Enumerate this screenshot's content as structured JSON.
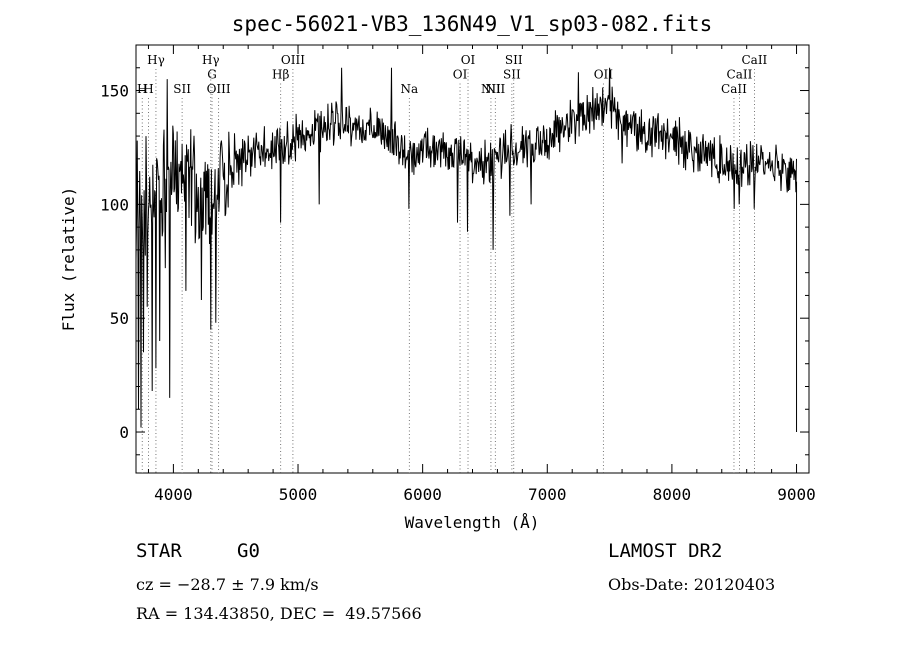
{
  "chart_data": {
    "type": "line",
    "title": "spec-56021-VB3_136N49_V1_sp03-082.fits",
    "xlabel": "Wavelength (Å)",
    "ylabel": "Flux (relative)",
    "xlim": [
      3700,
      9100
    ],
    "ylim": [
      -18,
      170
    ],
    "x_ticks": [
      4000,
      5000,
      6000,
      7000,
      8000,
      9000
    ],
    "y_ticks": [
      0,
      50,
      100,
      150
    ],
    "y_tick_labels": [
      "0",
      "50",
      "100",
      "150"
    ],
    "series": [
      {
        "anchors_x": [
          3700,
          3760,
          3800,
          3850,
          3900,
          3950,
          4000,
          4100,
          4200,
          4300,
          4400,
          4500,
          4700,
          4900,
          5100,
          5300,
          5500,
          5700,
          5900,
          6100,
          6300,
          6500,
          6700,
          6900,
          7100,
          7300,
          7450,
          7600,
          7800,
          8000,
          8200,
          8400,
          8600,
          8800,
          9000
        ],
        "anchors_y": [
          88,
          100,
          102,
          105,
          110,
          112,
          114,
          116,
          104,
          96,
          112,
          118,
          124,
          126,
          132,
          136,
          134,
          130,
          122,
          124,
          122,
          118,
          124,
          126,
          133,
          140,
          144,
          137,
          131,
          129,
          124,
          119,
          117,
          119,
          112
        ],
        "noise_level": 8,
        "dips": [
          {
            "x": 3720,
            "y": 10
          },
          {
            "x": 3740,
            "y": 2
          },
          {
            "x": 3760,
            "y": 35
          },
          {
            "x": 3790,
            "y": 55
          },
          {
            "x": 3830,
            "y": 18
          },
          {
            "x": 3860,
            "y": 28
          },
          {
            "x": 3890,
            "y": 40
          },
          {
            "x": 3935,
            "y": 72
          },
          {
            "x": 3968,
            "y": 15
          },
          {
            "x": 4101,
            "y": 62
          },
          {
            "x": 4226,
            "y": 58
          },
          {
            "x": 4300,
            "y": 45
          },
          {
            "x": 4340,
            "y": 48
          },
          {
            "x": 4861,
            "y": 92
          },
          {
            "x": 5170,
            "y": 100
          },
          {
            "x": 5890,
            "y": 98
          },
          {
            "x": 6280,
            "y": 92
          },
          {
            "x": 6360,
            "y": 88
          },
          {
            "x": 6563,
            "y": 80
          },
          {
            "x": 6700,
            "y": 95
          },
          {
            "x": 6870,
            "y": 100
          },
          {
            "x": 7600,
            "y": 118
          },
          {
            "x": 8498,
            "y": 98
          },
          {
            "x": 8542,
            "y": 100
          },
          {
            "x": 8662,
            "y": 98
          }
        ],
        "spikes": [
          {
            "x": 3710,
            "y": 128
          },
          {
            "x": 3780,
            "y": 130
          },
          {
            "x": 3920,
            "y": 126
          },
          {
            "x": 3950,
            "y": 155
          },
          {
            "x": 4030,
            "y": 132
          },
          {
            "x": 5350,
            "y": 160
          },
          {
            "x": 5750,
            "y": 160
          },
          {
            "x": 7250,
            "y": 158
          },
          {
            "x": 7500,
            "y": 160
          }
        ]
      }
    ],
    "line_marks": [
      {
        "x": 3750,
        "label": "H",
        "row": 1
      },
      {
        "x": 3800,
        "label": "H",
        "row": 1
      },
      {
        "x": 3860,
        "label": "Hγ",
        "row": 0
      },
      {
        "x": 4070,
        "label": "SII",
        "row": 1
      },
      {
        "x": 4300,
        "label": "Hγ",
        "row": 0
      },
      {
        "x": 4310,
        "label": "G",
        "row": 0.5
      },
      {
        "x": 4363,
        "label": "OIII",
        "row": 1
      },
      {
        "x": 4861,
        "label": "Hβ",
        "row": 0.5
      },
      {
        "x": 4959,
        "label": "OIII",
        "row": 0
      },
      {
        "x": 5893,
        "label": "Na",
        "row": 1
      },
      {
        "x": 6300,
        "label": "OI",
        "row": 0.5
      },
      {
        "x": 6364,
        "label": "OI",
        "row": 0
      },
      {
        "x": 6548,
        "label": "NII",
        "row": 1
      },
      {
        "x": 6583,
        "label": "NII",
        "row": 1
      },
      {
        "x": 6716,
        "label": "SII",
        "row": 0.5
      },
      {
        "x": 6731,
        "label": "SII",
        "row": 0
      },
      {
        "x": 7450,
        "label": "OII",
        "row": 0.5
      },
      {
        "x": 8498,
        "label": "CaII",
        "row": 1
      },
      {
        "x": 8542,
        "label": "CaII",
        "row": 0.5
      },
      {
        "x": 8662,
        "label": "CaII",
        "row": 0
      }
    ]
  },
  "footer": {
    "object_class": "STAR",
    "subclass": "G0",
    "survey": "LAMOST DR2",
    "cz": "cz = −28.7 ± 7.9 km/s",
    "obs_date": "Obs-Date: 20120403",
    "coords": "RA = 134.43850, DEC =  49.57566"
  }
}
